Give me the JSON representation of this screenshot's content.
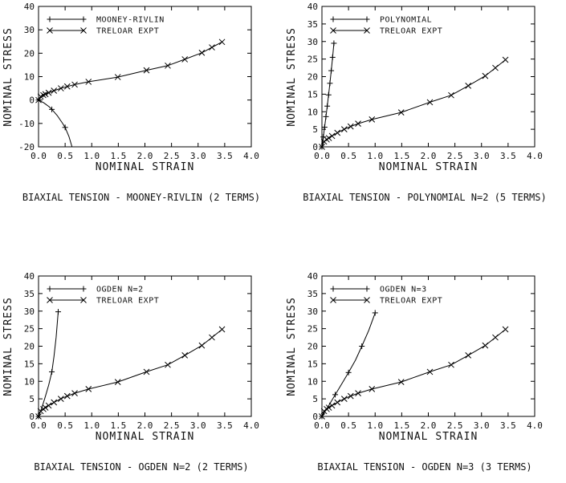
{
  "figure": {
    "background": "#ffffff",
    "line_color": "#000000",
    "text_color": "#111111"
  },
  "chart_data": [
    {
      "type": "line",
      "title": "BIAXIAL TENSION - MOONEY-RIVLIN (2 TERMS)",
      "xlabel": "NOMINAL STRAIN",
      "ylabel": "NOMINAL STRESS",
      "xlim": [
        0.0,
        4.0
      ],
      "ylim": [
        -20,
        40
      ],
      "xticks": [
        0.0,
        0.5,
        1.0,
        1.5,
        2.0,
        2.5,
        3.0,
        3.5,
        4.0
      ],
      "yticks": [
        -20,
        -10,
        0,
        10,
        20,
        30,
        40
      ],
      "grid": false,
      "legend_position": "top-left-inside",
      "series": [
        {
          "name": "MOONEY-RIVLIN",
          "marker": "plus",
          "x": [
            0.0,
            0.1,
            0.2,
            0.25,
            0.35,
            0.45,
            0.5,
            0.57,
            0.63
          ],
          "y": [
            0.0,
            -1.2,
            -2.9,
            -4.0,
            -6.6,
            -9.9,
            -11.7,
            -15.5,
            -20.0
          ],
          "marker_x": [
            0.0,
            0.25,
            0.5
          ],
          "marker_y": [
            0.0,
            -4.0,
            -11.7
          ]
        },
        {
          "name": "TRELOAR EXPT",
          "marker": "x",
          "x": [
            0.0,
            0.04,
            0.09,
            0.13,
            0.19,
            0.29,
            0.42,
            0.54,
            0.68,
            0.94,
            1.49,
            2.03,
            2.43,
            2.75,
            3.07,
            3.26,
            3.45
          ],
          "y": [
            0.0,
            1.5,
            2.1,
            2.5,
            3.1,
            4.0,
            5.0,
            5.8,
            6.6,
            7.8,
            9.8,
            12.7,
            14.7,
            17.4,
            20.2,
            22.5,
            24.8
          ]
        }
      ]
    },
    {
      "type": "line",
      "title": "BIAXIAL TENSION - POLYNOMIAL N=2 (5 TERMS)",
      "xlabel": "NOMINAL STRAIN",
      "ylabel": "NOMINAL STRESS",
      "xlim": [
        0.0,
        4.0
      ],
      "ylim": [
        0,
        40
      ],
      "xticks": [
        0.0,
        0.5,
        1.0,
        1.5,
        2.0,
        2.5,
        3.0,
        3.5,
        4.0
      ],
      "yticks": [
        0,
        5,
        10,
        15,
        20,
        25,
        30,
        35,
        40
      ],
      "grid": false,
      "legend_position": "top-left-inside",
      "series": [
        {
          "name": "POLYNOMIAL",
          "marker": "plus",
          "x": [
            0.0,
            0.025,
            0.05,
            0.075,
            0.1,
            0.125,
            0.15,
            0.175,
            0.2,
            0.225
          ],
          "y": [
            0.0,
            2.8,
            5.6,
            8.6,
            11.6,
            14.8,
            18.1,
            21.7,
            25.5,
            29.5
          ]
        },
        {
          "name": "TRELOAR EXPT",
          "marker": "x",
          "x": [
            0.0,
            0.04,
            0.09,
            0.13,
            0.19,
            0.29,
            0.42,
            0.54,
            0.68,
            0.94,
            1.49,
            2.03,
            2.43,
            2.75,
            3.07,
            3.26,
            3.45
          ],
          "y": [
            0.0,
            1.5,
            2.1,
            2.5,
            3.1,
            4.0,
            5.0,
            5.8,
            6.6,
            7.8,
            9.8,
            12.7,
            14.7,
            17.4,
            20.2,
            22.5,
            24.8
          ]
        }
      ]
    },
    {
      "type": "line",
      "title": "BIAXIAL TENSION - OGDEN N=2 (2 TERMS)",
      "xlabel": "NOMINAL STRAIN",
      "ylabel": "NOMINAL STRESS",
      "xlim": [
        0.0,
        4.0
      ],
      "ylim": [
        0,
        40
      ],
      "xticks": [
        0.0,
        0.5,
        1.0,
        1.5,
        2.0,
        2.5,
        3.0,
        3.5,
        4.0
      ],
      "yticks": [
        0,
        5,
        10,
        15,
        20,
        25,
        30,
        35,
        40
      ],
      "grid": false,
      "legend_position": "top-left-inside",
      "series": [
        {
          "name": "OGDEN N=2",
          "marker": "plus",
          "x": [
            0.0,
            0.06,
            0.12,
            0.19,
            0.25,
            0.29,
            0.33,
            0.37
          ],
          "y": [
            0.0,
            2.4,
            5.3,
            8.9,
            12.7,
            17.0,
            22.5,
            29.8
          ],
          "marker_x": [
            0.0,
            0.25,
            0.37
          ],
          "marker_y": [
            0.0,
            12.7,
            29.8
          ]
        },
        {
          "name": "TRELOAR EXPT",
          "marker": "x",
          "x": [
            0.0,
            0.04,
            0.09,
            0.13,
            0.19,
            0.29,
            0.42,
            0.54,
            0.68,
            0.94,
            1.49,
            2.03,
            2.43,
            2.75,
            3.07,
            3.26,
            3.45
          ],
          "y": [
            0.0,
            1.5,
            2.1,
            2.5,
            3.1,
            4.0,
            5.0,
            5.8,
            6.6,
            7.8,
            9.8,
            12.7,
            14.7,
            17.4,
            20.2,
            22.5,
            24.8
          ]
        }
      ]
    },
    {
      "type": "line",
      "title": "BIAXIAL TENSION - OGDEN N=3 (3 TERMS)",
      "xlabel": "NOMINAL STRAIN",
      "ylabel": "NOMINAL STRESS",
      "xlim": [
        0.0,
        4.0
      ],
      "ylim": [
        0,
        40
      ],
      "xticks": [
        0.0,
        0.5,
        1.0,
        1.5,
        2.0,
        2.5,
        3.0,
        3.5,
        4.0
      ],
      "yticks": [
        0,
        5,
        10,
        15,
        20,
        25,
        30,
        35,
        40
      ],
      "grid": false,
      "legend_position": "top-left-inside",
      "series": [
        {
          "name": "OGDEN N=3",
          "marker": "plus",
          "x": [
            0.0,
            0.12,
            0.25,
            0.37,
            0.5,
            0.63,
            0.75,
            0.88,
            1.0
          ],
          "y": [
            0.0,
            2.9,
            6.2,
            9.2,
            12.5,
            16.0,
            20.0,
            24.5,
            29.5
          ],
          "marker_x": [
            0.0,
            0.25,
            0.5,
            0.75,
            1.0
          ],
          "marker_y": [
            0.0,
            6.2,
            12.5,
            20.0,
            29.5
          ]
        },
        {
          "name": "TRELOAR EXPT",
          "marker": "x",
          "x": [
            0.0,
            0.04,
            0.09,
            0.13,
            0.19,
            0.29,
            0.42,
            0.54,
            0.68,
            0.94,
            1.49,
            2.03,
            2.43,
            2.75,
            3.07,
            3.26,
            3.45
          ],
          "y": [
            0.0,
            1.5,
            2.1,
            2.5,
            3.1,
            4.0,
            5.0,
            5.8,
            6.6,
            7.8,
            9.8,
            12.7,
            14.7,
            17.4,
            20.2,
            22.5,
            24.8
          ]
        }
      ]
    }
  ]
}
